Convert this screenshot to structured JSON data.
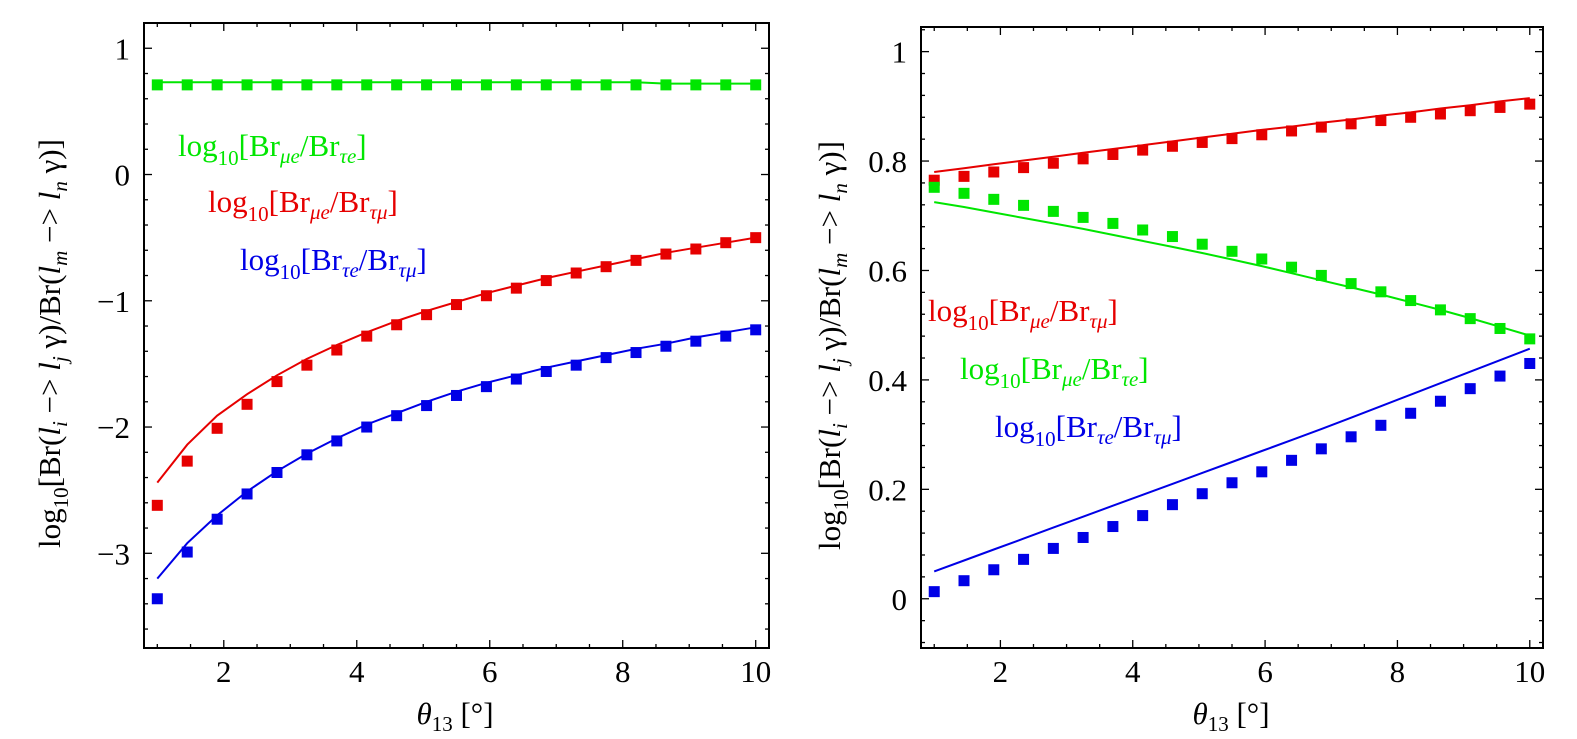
{
  "chart_data": [
    {
      "type": "scatter",
      "panel": "left",
      "xlabel": {
        "symbol": "θ",
        "sub": "13",
        "unit": "[°]"
      },
      "ylabel": {
        "prefix": "log",
        "prefix_sub": "10",
        "body_1": "[Br(",
        "li": "l",
        "li_sub": "i",
        "arrow_1": " −> ",
        "lj": "l",
        "lj_sub": "j",
        "gamma_1": " γ)/Br(",
        "lm": "l",
        "lm_sub": "m",
        "arrow_2": " −> ",
        "ln": "l",
        "ln_sub": "n",
        "gamma_2": " γ)]"
      },
      "xlim": [
        0.8,
        10.2
      ],
      "ylim": [
        -3.75,
        1.2
      ],
      "xticks": [
        2,
        4,
        6,
        8,
        10
      ],
      "xtick_labels": [
        "2",
        "4",
        "6",
        "8",
        "10"
      ],
      "yticks": [
        1,
        0,
        -1,
        -2,
        -3
      ],
      "ytick_labels": [
        "1",
        "0",
        "−1",
        "−2",
        "−3"
      ],
      "x": [
        1,
        1.45,
        1.9,
        2.35,
        2.8,
        3.25,
        3.7,
        4.15,
        4.6,
        5.05,
        5.5,
        5.95,
        6.4,
        6.85,
        7.3,
        7.75,
        8.2,
        8.65,
        9.1,
        9.55,
        10
      ],
      "series": [
        {
          "name": "Br_mue/Br_taue",
          "color": "#00e600",
          "points": [
            0.71,
            0.71,
            0.71,
            0.71,
            0.71,
            0.71,
            0.71,
            0.71,
            0.71,
            0.71,
            0.71,
            0.71,
            0.71,
            0.71,
            0.71,
            0.71,
            0.71,
            0.71,
            0.71,
            0.71,
            0.71
          ],
          "line": [
            0.73,
            0.73,
            0.73,
            0.73,
            0.73,
            0.73,
            0.73,
            0.73,
            0.73,
            0.73,
            0.73,
            0.73,
            0.73,
            0.73,
            0.73,
            0.73,
            0.73,
            0.72,
            0.72,
            0.72,
            0.72
          ]
        },
        {
          "name": "Br_mue/Br_taumu",
          "color": "#e60000",
          "points": [
            -2.62,
            -2.27,
            -2.01,
            -1.82,
            -1.64,
            -1.51,
            -1.39,
            -1.28,
            -1.19,
            -1.11,
            -1.03,
            -0.96,
            -0.9,
            -0.84,
            -0.78,
            -0.73,
            -0.68,
            -0.63,
            -0.59,
            -0.54,
            -0.5
          ],
          "line": [
            -2.44,
            -2.14,
            -1.91,
            -1.74,
            -1.59,
            -1.46,
            -1.35,
            -1.25,
            -1.16,
            -1.08,
            -1.01,
            -0.94,
            -0.88,
            -0.82,
            -0.77,
            -0.72,
            -0.67,
            -0.62,
            -0.58,
            -0.54,
            -0.5
          ]
        },
        {
          "name": "Br_taue/Br_taumu",
          "color": "#0000e6",
          "points": [
            -3.36,
            -2.99,
            -2.73,
            -2.53,
            -2.36,
            -2.22,
            -2.11,
            -2.0,
            -1.91,
            -1.83,
            -1.75,
            -1.68,
            -1.62,
            -1.56,
            -1.51,
            -1.45,
            -1.41,
            -1.36,
            -1.32,
            -1.28,
            -1.23
          ],
          "line": [
            -3.2,
            -2.92,
            -2.7,
            -2.51,
            -2.35,
            -2.21,
            -2.09,
            -1.98,
            -1.89,
            -1.8,
            -1.72,
            -1.65,
            -1.59,
            -1.53,
            -1.48,
            -1.43,
            -1.38,
            -1.34,
            -1.29,
            -1.25,
            -1.21
          ]
        }
      ],
      "legend": [
        {
          "color": "#00e600",
          "num": "μe",
          "den": "τe"
        },
        {
          "color": "#e60000",
          "num": "μe",
          "den": "τμ"
        },
        {
          "color": "#0000e6",
          "num": "τe",
          "den": "τμ"
        }
      ]
    },
    {
      "type": "scatter",
      "panel": "right",
      "xlabel": {
        "symbol": "θ",
        "sub": "13",
        "unit": "[°]"
      },
      "ylabel": {
        "prefix": "log",
        "prefix_sub": "10",
        "body_1": "[Br(",
        "li": "l",
        "li_sub": "i",
        "arrow_1": " −> ",
        "lj": "l",
        "lj_sub": "j",
        "gamma_1": " γ)/Br(",
        "lm": "l",
        "lm_sub": "m",
        "arrow_2": " −> ",
        "ln": "l",
        "ln_sub": "n",
        "gamma_2": " γ)]"
      },
      "xlim": [
        0.8,
        10.2
      ],
      "ylim": [
        -0.09,
        1.045
      ],
      "xticks": [
        2,
        4,
        6,
        8,
        10
      ],
      "xtick_labels": [
        "2",
        "4",
        "6",
        "8",
        "10"
      ],
      "yticks": [
        1,
        0.8,
        0.6,
        0.4,
        0.2,
        0
      ],
      "ytick_labels": [
        "1",
        "0.8",
        "0.6",
        "0.4",
        "0.2",
        "0"
      ],
      "x": [
        1,
        1.45,
        1.9,
        2.35,
        2.8,
        3.25,
        3.7,
        4.15,
        4.6,
        5.05,
        5.5,
        5.95,
        6.4,
        6.85,
        7.3,
        7.75,
        8.2,
        8.65,
        9.1,
        9.55,
        10
      ],
      "series": [
        {
          "name": "Br_mue/Br_taumu",
          "color": "#e60000",
          "points": [
            0.765,
            0.772,
            0.78,
            0.788,
            0.796,
            0.804,
            0.812,
            0.82,
            0.827,
            0.834,
            0.841,
            0.848,
            0.855,
            0.862,
            0.868,
            0.874,
            0.88,
            0.886,
            0.892,
            0.898,
            0.904
          ],
          "line": [
            0.78,
            0.787,
            0.794,
            0.801,
            0.808,
            0.815,
            0.822,
            0.829,
            0.836,
            0.843,
            0.85,
            0.857,
            0.863,
            0.87,
            0.876,
            0.883,
            0.889,
            0.896,
            0.902,
            0.909,
            0.915
          ]
        },
        {
          "name": "Br_mue/Br_taue",
          "color": "#00e600",
          "points": [
            0.752,
            0.741,
            0.73,
            0.719,
            0.708,
            0.697,
            0.686,
            0.674,
            0.662,
            0.648,
            0.635,
            0.621,
            0.606,
            0.591,
            0.576,
            0.561,
            0.545,
            0.528,
            0.512,
            0.494,
            0.475
          ],
          "line": [
            0.725,
            0.716,
            0.706,
            0.696,
            0.686,
            0.676,
            0.665,
            0.654,
            0.643,
            0.632,
            0.62,
            0.608,
            0.595,
            0.582,
            0.569,
            0.556,
            0.542,
            0.528,
            0.513,
            0.497,
            0.481
          ]
        },
        {
          "name": "Br_taue/Br_taumu",
          "color": "#0000e6",
          "points": [
            0.013,
            0.033,
            0.053,
            0.072,
            0.092,
            0.112,
            0.132,
            0.152,
            0.172,
            0.192,
            0.212,
            0.232,
            0.253,
            0.274,
            0.296,
            0.317,
            0.339,
            0.361,
            0.384,
            0.407,
            0.43
          ],
          "line": [
            0.05,
            0.07,
            0.09,
            0.11,
            0.13,
            0.15,
            0.17,
            0.19,
            0.21,
            0.23,
            0.25,
            0.27,
            0.29,
            0.31,
            0.331,
            0.352,
            0.373,
            0.394,
            0.415,
            0.436,
            0.457
          ]
        }
      ],
      "legend": [
        {
          "color": "#e60000",
          "num": "μe",
          "den": "τμ"
        },
        {
          "color": "#00e600",
          "num": "μe",
          "den": "τe"
        },
        {
          "color": "#0000e6",
          "num": "τe",
          "den": "τμ"
        }
      ]
    }
  ],
  "legend_template": {
    "log": "log",
    "log_sub": "10",
    "open": "[Br",
    "slash": "/Br",
    "close": "]"
  }
}
